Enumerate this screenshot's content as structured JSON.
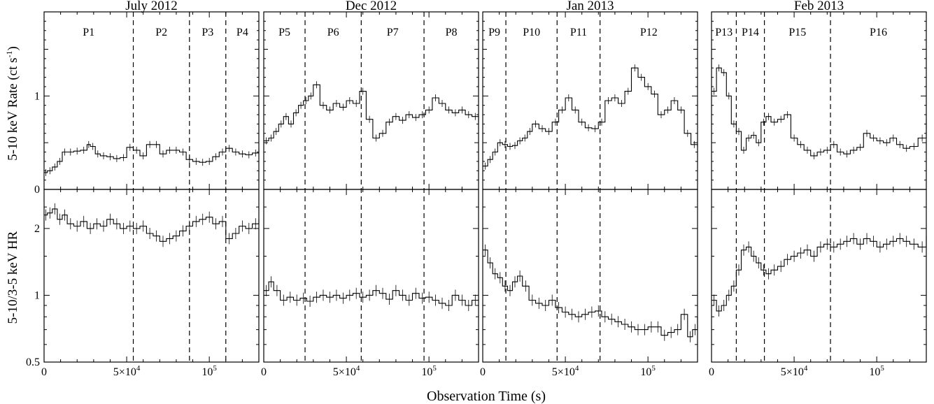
{
  "figure": {
    "xlabel": "Observation Time (s)",
    "ylabel_top": "5-10 keV Rate (ct s",
    "ylabel_top_sup": "-1",
    "ylabel_top_close": ")",
    "ylabel_bottom": "5-10/3-5 keV HR",
    "ytick_labels_top": [
      "0",
      "1"
    ],
    "ytick_labels_bottom": [
      "0.5",
      "1",
      "2"
    ],
    "xtick_label_zero": "0",
    "xtick_label_5e4_base": "5×10",
    "xtick_label_5e4_exp": "4",
    "xtick_label_1e5_base": "10",
    "xtick_label_1e5_exp": "5"
  },
  "chart_data": [
    {
      "type": "line",
      "title": "July 2012",
      "xlim": [
        0,
        130000
      ],
      "period_labels": [
        "P1",
        "P2",
        "P3",
        "P4"
      ],
      "divider_x": [
        54000,
        88000,
        110000
      ],
      "rate_ylim": [
        0,
        1.9
      ],
      "rate_yscale": "linear",
      "hr_ylim": [
        0.5,
        3.0
      ],
      "hr_yscale": "log",
      "grid": false,
      "series": [
        {
          "panel": "rate",
          "x": [
            0,
            2000,
            5000,
            8000,
            11000,
            14000,
            18000,
            22000,
            26000,
            28000,
            31000,
            34000,
            38000,
            42000,
            46000,
            50000,
            54000,
            58000,
            62000,
            66000,
            70000,
            74000,
            78000,
            82000,
            86000,
            90000,
            94000,
            98000,
            102000,
            106000,
            110000,
            114000,
            118000,
            122000,
            126000,
            130000
          ],
          "y": [
            0.18,
            0.2,
            0.24,
            0.3,
            0.4,
            0.4,
            0.41,
            0.42,
            0.48,
            0.46,
            0.38,
            0.36,
            0.35,
            0.33,
            0.34,
            0.45,
            0.42,
            0.36,
            0.48,
            0.48,
            0.38,
            0.42,
            0.42,
            0.4,
            0.32,
            0.3,
            0.29,
            0.3,
            0.35,
            0.4,
            0.44,
            0.4,
            0.38,
            0.37,
            0.39,
            0.43
          ]
        },
        {
          "panel": "hr",
          "x": [
            0,
            2000,
            5000,
            8000,
            11000,
            14000,
            18000,
            22000,
            26000,
            30000,
            34000,
            38000,
            42000,
            46000,
            50000,
            54000,
            58000,
            62000,
            66000,
            70000,
            74000,
            78000,
            82000,
            86000,
            90000,
            94000,
            98000,
            102000,
            106000,
            110000,
            114000,
            118000,
            122000,
            126000,
            130000
          ],
          "y": [
            2.3,
            2.35,
            2.45,
            2.2,
            2.3,
            2.1,
            2.05,
            2.15,
            2.0,
            2.1,
            2.05,
            2.2,
            2.1,
            2.0,
            2.05,
            2.0,
            2.05,
            1.9,
            1.85,
            1.75,
            1.8,
            1.85,
            1.95,
            2.05,
            2.15,
            2.2,
            2.25,
            2.1,
            2.15,
            1.8,
            1.9,
            2.05,
            2.0,
            2.1,
            2.2
          ]
        }
      ]
    },
    {
      "type": "line",
      "title": "Dec 2012",
      "xlim": [
        0,
        130000
      ],
      "period_labels": [
        "P5",
        "P6",
        "P7",
        "P8"
      ],
      "divider_x": [
        25000,
        59000,
        97000
      ],
      "rate_ylim": [
        0,
        1.9
      ],
      "rate_yscale": "linear",
      "hr_ylim": [
        0.5,
        3.0
      ],
      "hr_yscale": "log",
      "grid": false,
      "series": [
        {
          "panel": "rate",
          "x": [
            0,
            3000,
            6000,
            9000,
            12000,
            15000,
            18000,
            21000,
            24000,
            27000,
            30000,
            34000,
            38000,
            42000,
            46000,
            50000,
            54000,
            58000,
            62000,
            66000,
            70000,
            74000,
            78000,
            82000,
            86000,
            90000,
            94000,
            98000,
            102000,
            106000,
            110000,
            114000,
            118000,
            122000,
            126000,
            130000
          ],
          "y": [
            0.52,
            0.55,
            0.62,
            0.7,
            0.78,
            0.7,
            0.82,
            0.9,
            0.95,
            1.0,
            1.12,
            0.9,
            0.85,
            0.92,
            0.88,
            0.95,
            0.92,
            1.05,
            0.75,
            0.55,
            0.6,
            0.72,
            0.78,
            0.74,
            0.8,
            0.77,
            0.8,
            0.85,
            0.98,
            0.92,
            0.85,
            0.82,
            0.85,
            0.8,
            0.78,
            0.72
          ]
        },
        {
          "panel": "hr",
          "x": [
            0,
            3000,
            6000,
            10000,
            14000,
            18000,
            22000,
            26000,
            30000,
            34000,
            38000,
            42000,
            46000,
            50000,
            54000,
            58000,
            62000,
            66000,
            70000,
            74000,
            78000,
            82000,
            86000,
            90000,
            94000,
            98000,
            102000,
            106000,
            110000,
            114000,
            118000,
            122000,
            126000,
            130000
          ],
          "y": [
            1.05,
            1.15,
            1.05,
            0.95,
            0.98,
            0.95,
            0.97,
            0.94,
            0.98,
            1.0,
            0.98,
            1.0,
            0.97,
            1.0,
            1.02,
            0.98,
            1.0,
            1.05,
            1.02,
            0.96,
            1.05,
            1.0,
            0.95,
            1.02,
            0.97,
            0.98,
            0.95,
            0.92,
            0.9,
            1.0,
            0.95,
            0.9,
            0.95,
            0.95
          ]
        }
      ]
    },
    {
      "type": "line",
      "title": "Jan 2013",
      "xlim": [
        0,
        130000
      ],
      "period_labels": [
        "P9",
        "P10",
        "P11",
        "P12"
      ],
      "divider_x": [
        14000,
        45000,
        71000
      ],
      "rate_ylim": [
        0,
        1.9
      ],
      "rate_yscale": "linear",
      "hr_ylim": [
        0.5,
        3.0
      ],
      "hr_yscale": "log",
      "grid": false,
      "series": [
        {
          "panel": "rate",
          "x": [
            0,
            3000,
            6000,
            9000,
            12000,
            15000,
            18000,
            21000,
            24000,
            27000,
            30000,
            34000,
            38000,
            42000,
            46000,
            50000,
            54000,
            58000,
            62000,
            66000,
            70000,
            74000,
            78000,
            82000,
            86000,
            90000,
            94000,
            98000,
            102000,
            106000,
            110000,
            114000,
            118000,
            122000,
            126000,
            130000
          ],
          "y": [
            0.25,
            0.32,
            0.4,
            0.5,
            0.48,
            0.46,
            0.47,
            0.52,
            0.55,
            0.62,
            0.7,
            0.65,
            0.62,
            0.72,
            0.85,
            0.98,
            0.85,
            0.72,
            0.66,
            0.65,
            0.72,
            0.95,
            0.98,
            0.92,
            1.05,
            1.3,
            1.2,
            1.1,
            1.02,
            0.8,
            0.85,
            0.95,
            0.85,
            0.6,
            0.48,
            0.45
          ]
        },
        {
          "panel": "hr",
          "x": [
            0,
            3000,
            6000,
            9000,
            12000,
            15000,
            18000,
            21000,
            24000,
            28000,
            32000,
            36000,
            40000,
            44000,
            48000,
            52000,
            56000,
            60000,
            64000,
            68000,
            72000,
            76000,
            80000,
            84000,
            88000,
            92000,
            96000,
            100000,
            104000,
            108000,
            112000,
            116000,
            120000,
            124000,
            127000,
            130000
          ],
          "y": [
            1.6,
            1.4,
            1.25,
            1.2,
            1.1,
            1.05,
            1.15,
            1.22,
            1.1,
            0.95,
            0.92,
            0.9,
            0.95,
            0.88,
            0.84,
            0.82,
            0.8,
            0.82,
            0.84,
            0.85,
            0.8,
            0.78,
            0.76,
            0.74,
            0.72,
            0.7,
            0.7,
            0.72,
            0.72,
            0.66,
            0.68,
            0.7,
            0.82,
            0.65,
            0.7,
            0.8
          ]
        }
      ]
    },
    {
      "type": "line",
      "title": "Feb 2013",
      "xlim": [
        0,
        130000
      ],
      "period_labels": [
        "P13",
        "P14",
        "P15",
        "P16"
      ],
      "divider_x": [
        15000,
        32000,
        72000
      ],
      "rate_ylim": [
        0,
        1.9
      ],
      "rate_yscale": "linear",
      "hr_ylim": [
        0.5,
        3.0
      ],
      "hr_yscale": "log",
      "grid": false,
      "series": [
        {
          "panel": "rate",
          "x": [
            0,
            3000,
            6000,
            9000,
            12000,
            15000,
            18000,
            21000,
            24000,
            27000,
            30000,
            33000,
            36000,
            40000,
            44000,
            48000,
            52000,
            56000,
            60000,
            64000,
            68000,
            72000,
            76000,
            80000,
            84000,
            88000,
            92000,
            96000,
            100000,
            104000,
            108000,
            112000,
            116000,
            120000,
            125000,
            130000
          ],
          "y": [
            1.05,
            1.3,
            1.25,
            1.0,
            0.7,
            0.62,
            0.42,
            0.55,
            0.58,
            0.5,
            0.72,
            0.78,
            0.72,
            0.75,
            0.8,
            0.55,
            0.48,
            0.42,
            0.36,
            0.4,
            0.42,
            0.48,
            0.4,
            0.38,
            0.42,
            0.45,
            0.6,
            0.55,
            0.52,
            0.5,
            0.55,
            0.48,
            0.44,
            0.46,
            0.55,
            0.75
          ]
        },
        {
          "panel": "hr",
          "x": [
            0,
            3000,
            6000,
            9000,
            12000,
            15000,
            18000,
            21000,
            24000,
            27000,
            30000,
            33000,
            36000,
            40000,
            44000,
            48000,
            52000,
            56000,
            60000,
            64000,
            68000,
            72000,
            76000,
            80000,
            84000,
            88000,
            92000,
            96000,
            100000,
            104000,
            108000,
            112000,
            116000,
            120000,
            125000,
            130000
          ],
          "y": [
            0.95,
            0.85,
            0.9,
            1.0,
            1.1,
            1.3,
            1.6,
            1.65,
            1.5,
            1.4,
            1.3,
            1.25,
            1.3,
            1.35,
            1.45,
            1.5,
            1.55,
            1.6,
            1.5,
            1.65,
            1.7,
            1.65,
            1.7,
            1.75,
            1.8,
            1.7,
            1.8,
            1.75,
            1.65,
            1.7,
            1.75,
            1.8,
            1.75,
            1.7,
            1.65,
            1.85
          ]
        }
      ]
    }
  ]
}
